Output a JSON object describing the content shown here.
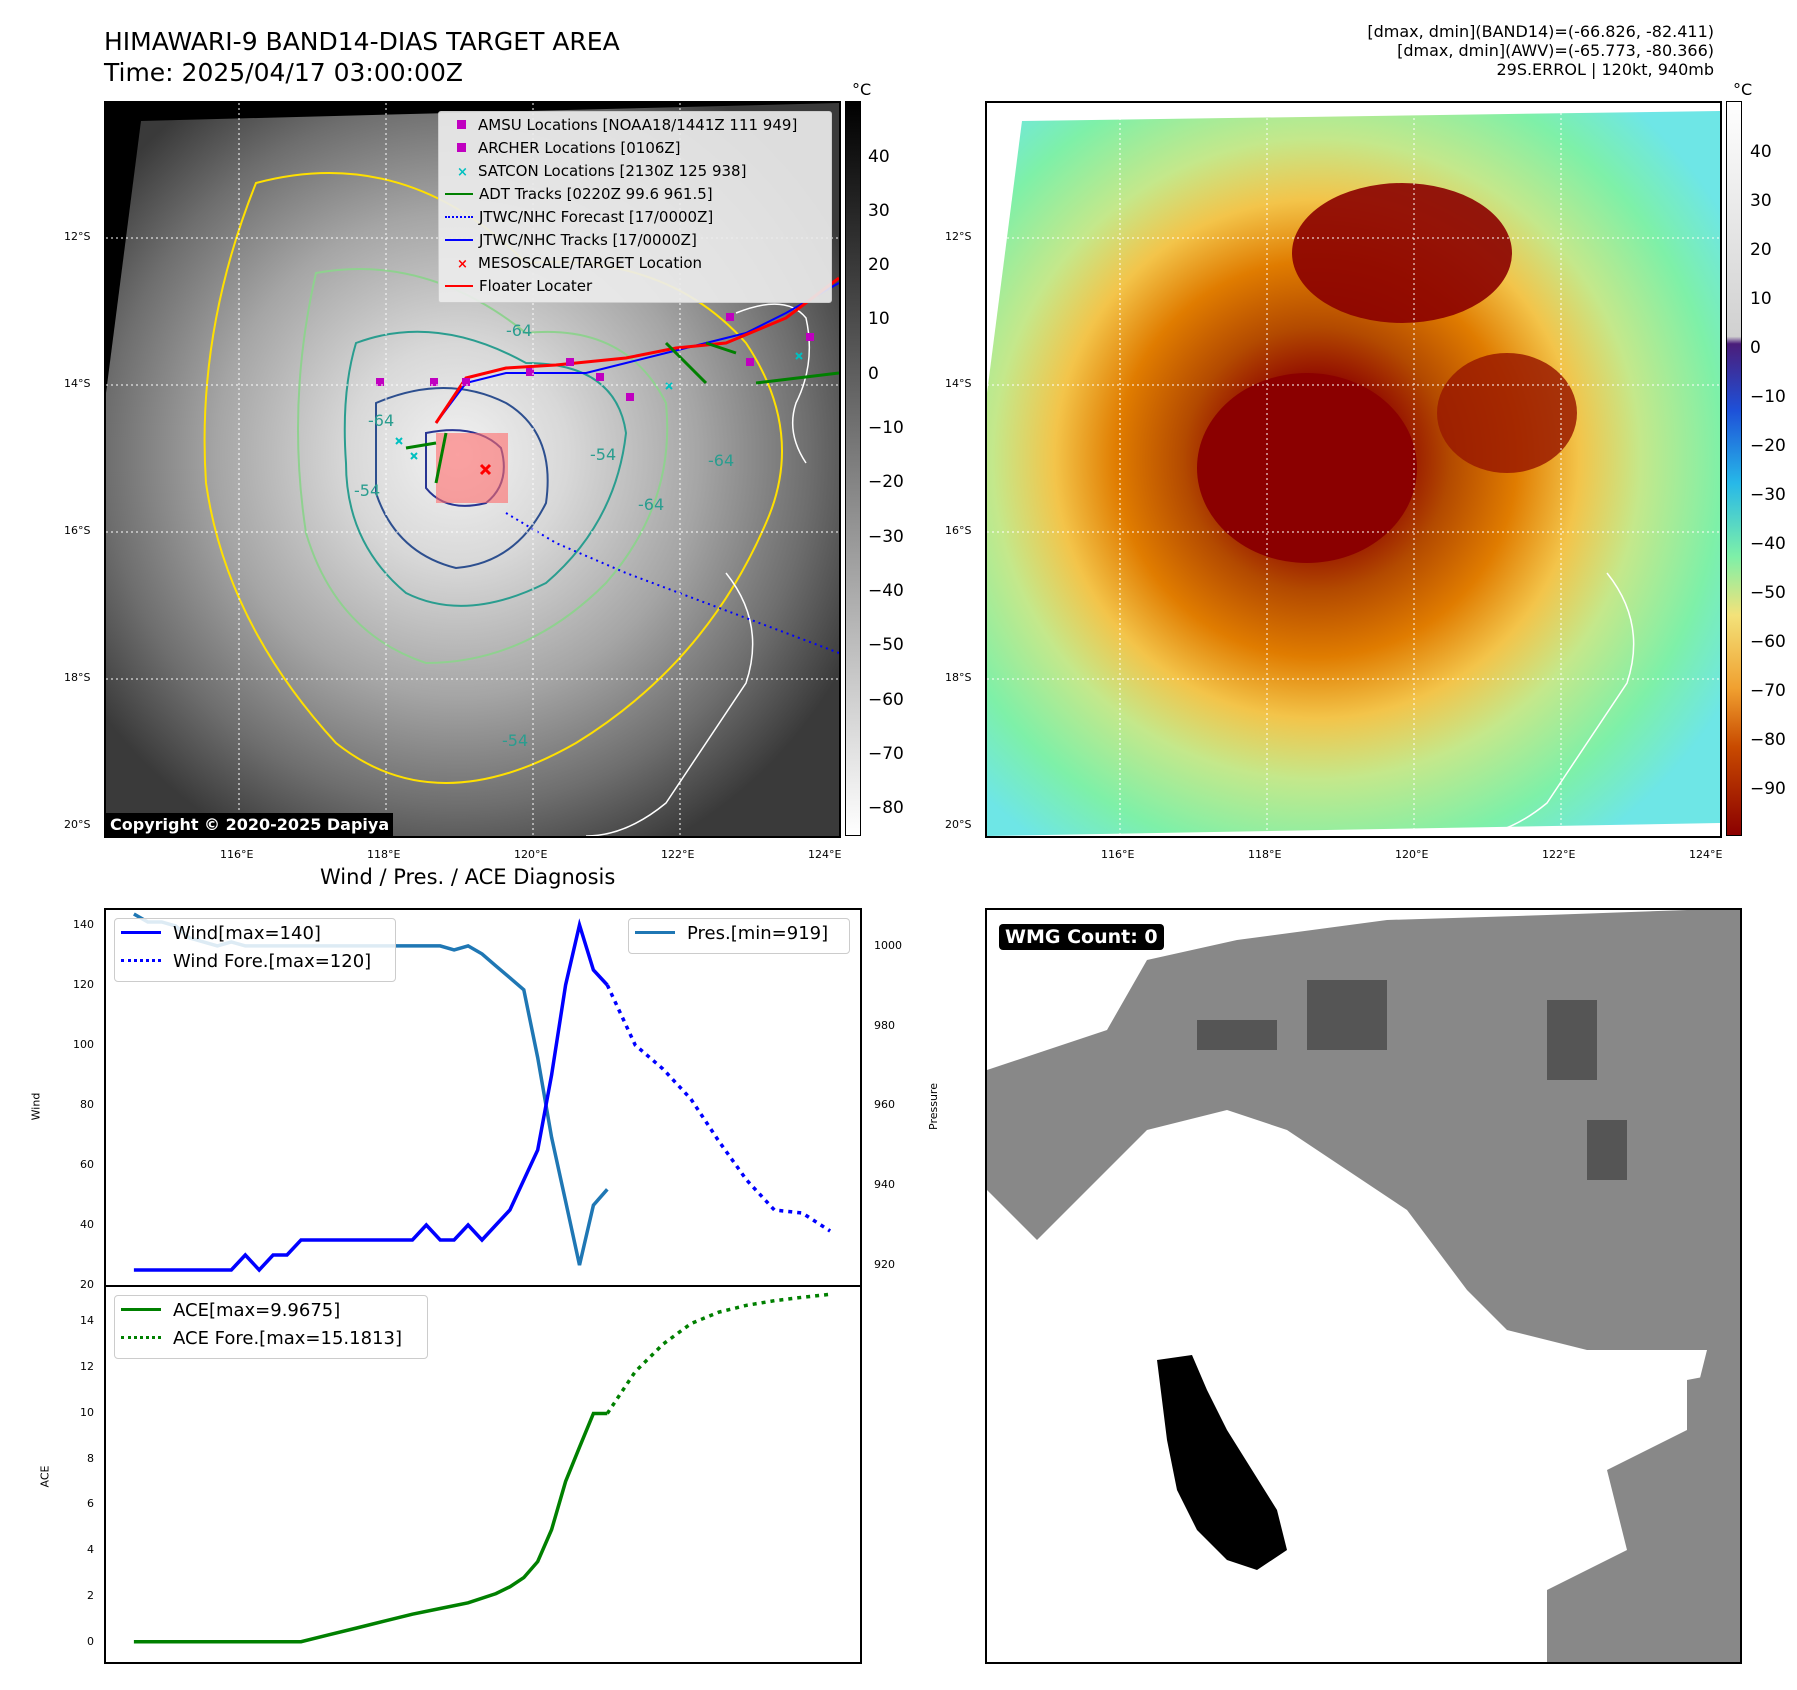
{
  "header": {
    "title_line1": "HIMAWARI-9 BAND14-DIAS TARGET AREA",
    "title_line2": "Time: 2025/04/17 03:00:00Z",
    "right_line1": "[dmax, dmin](BAND14)=(-66.826, -82.411)",
    "right_line2": "[dmax, dmin](AWV)=(-65.773, -80.366)",
    "right_line3": "29S.ERROL | 120kt, 940mb"
  },
  "map": {
    "lat_labels": [
      "12°S",
      "14°S",
      "16°S",
      "18°S",
      "20°S"
    ],
    "lon_labels": [
      "116°E",
      "118°E",
      "120°E",
      "122°E",
      "124°E"
    ],
    "copyright": "Copyright © 2020-2025 Dapiya",
    "contour_labels": [
      "-64",
      "-54",
      "-64",
      "-54",
      "-64",
      "-64",
      "-54"
    ],
    "legend": [
      {
        "label": "AMSU Locations [NOAA18/1441Z 111 949]",
        "color": "#c000c0",
        "marker": "square"
      },
      {
        "label": "ARCHER Locations [0106Z]",
        "color": "#c000c0",
        "marker": "square"
      },
      {
        "label": "SATCON Locations [2130Z 125 938]",
        "color": "#00c0c0",
        "marker": "x"
      },
      {
        "label": "ADT Tracks [0220Z 99.6 961.5]",
        "color": "#008000",
        "marker": "line"
      },
      {
        "label": "JTWC/NHC Forecast [17/0000Z]",
        "color": "#0000ff",
        "marker": "dotted"
      },
      {
        "label": "JTWC/NHC Tracks [17/0000Z]",
        "color": "#0000ff",
        "marker": "line-dot"
      },
      {
        "label": "MESOSCALE/TARGET Location",
        "color": "#ff0000",
        "marker": "x"
      },
      {
        "label": "Floater Locater",
        "color": "#ff0000",
        "marker": "line"
      }
    ]
  },
  "colorbar_left": {
    "unit": "°C",
    "ticks": [
      "40",
      "30",
      "20",
      "10",
      "0",
      "−10",
      "−20",
      "−30",
      "−40",
      "−50",
      "−60",
      "−70",
      "−80"
    ]
  },
  "colorbar_right": {
    "unit": "°C",
    "ticks": [
      "40",
      "30",
      "20",
      "10",
      "0",
      "−10",
      "−20",
      "−30",
      "−40",
      "−50",
      "−60",
      "−70",
      "−80",
      "−90"
    ]
  },
  "wmg": {
    "label": "WMG Count: 0"
  },
  "chart_data": [
    {
      "type": "line",
      "title": "Wind / Pres. / ACE Diagnosis",
      "ylabel": "Wind",
      "ylim": [
        20,
        145
      ],
      "yticks": [
        "20",
        "40",
        "60",
        "80",
        "100",
        "120",
        "140"
      ],
      "series": [
        {
          "name": "Wind[max=140]",
          "color": "#0000ff",
          "style": "solid",
          "x": [
            0,
            1,
            2,
            3,
            4,
            5,
            6,
            7,
            8,
            9,
            10,
            11,
            12,
            13,
            14,
            15,
            16,
            17,
            18,
            19,
            20,
            21,
            22,
            23,
            24,
            25,
            26,
            27,
            28,
            29,
            30,
            31,
            32,
            33,
            34
          ],
          "values": [
            25,
            25,
            25,
            25,
            25,
            25,
            25,
            25,
            30,
            25,
            30,
            30,
            35,
            35,
            35,
            35,
            35,
            35,
            35,
            35,
            35,
            40,
            35,
            35,
            40,
            35,
            40,
            45,
            55,
            65,
            90,
            120,
            140,
            125,
            120
          ]
        },
        {
          "name": "Wind Fore.[max=120]",
          "color": "#0000ff",
          "style": "dotted",
          "x": [
            34,
            36,
            38,
            40,
            42,
            44,
            46,
            48,
            50
          ],
          "values": [
            120,
            100,
            92,
            82,
            68,
            55,
            45,
            44,
            38
          ]
        }
      ],
      "legend_pos": "top-left"
    },
    {
      "type": "line",
      "ylabel": "Pressure",
      "ylim": [
        915,
        1009
      ],
      "yticks": [
        "920",
        "940",
        "960",
        "980",
        "1000"
      ],
      "series": [
        {
          "name": "Pres.[min=919]",
          "color": "#1f77b4",
          "style": "solid",
          "x": [
            0,
            1,
            2,
            3,
            4,
            5,
            6,
            7,
            8,
            9,
            10,
            11,
            12,
            13,
            14,
            15,
            16,
            17,
            18,
            19,
            20,
            21,
            22,
            23,
            24,
            25,
            26,
            27,
            28,
            29,
            30,
            31,
            32,
            33,
            34
          ],
          "values": [
            1008,
            1006,
            1006,
            1005,
            1002,
            1001,
            1000,
            1001,
            1000,
            1000,
            1000,
            1000,
            1000,
            1000,
            1000,
            1000,
            1000,
            1000,
            1000,
            1000,
            1000,
            1000,
            1000,
            999,
            1000,
            998,
            995,
            992,
            989,
            972,
            952,
            936,
            920,
            935,
            939
          ]
        }
      ],
      "legend_pos": "top-right"
    },
    {
      "type": "line",
      "ylabel": "ACE",
      "ylim": [
        -0.8,
        15.5
      ],
      "yticks": [
        "0",
        "2",
        "4",
        "6",
        "8",
        "10",
        "12",
        "14"
      ],
      "series": [
        {
          "name": "ACE[max=9.9675]",
          "color": "#008000",
          "style": "solid",
          "x": [
            0,
            12,
            14,
            16,
            18,
            20,
            22,
            24,
            26,
            27,
            28,
            29,
            30,
            31,
            32,
            33,
            34
          ],
          "values": [
            0,
            0,
            0.3,
            0.6,
            0.9,
            1.2,
            1.45,
            1.7,
            2.1,
            2.4,
            2.8,
            3.5,
            4.9,
            7,
            8.5,
            9.97,
            9.97
          ]
        },
        {
          "name": "ACE Fore.[max=15.1813]",
          "color": "#008000",
          "style": "dotted",
          "x": [
            34,
            36,
            38,
            40,
            42,
            44,
            46,
            48,
            50
          ],
          "values": [
            9.97,
            11.8,
            13.0,
            13.9,
            14.4,
            14.7,
            14.9,
            15.05,
            15.18
          ]
        }
      ],
      "legend_pos": "top-left"
    }
  ]
}
